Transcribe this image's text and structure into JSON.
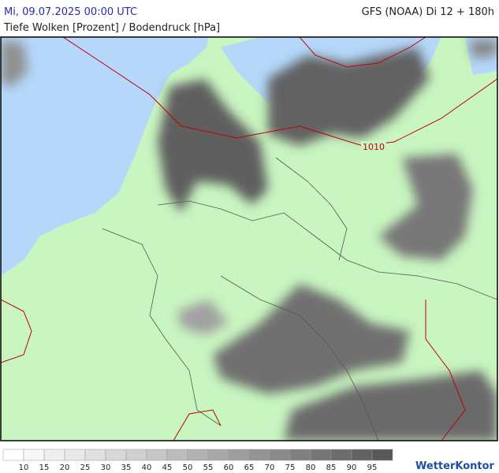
{
  "header": {
    "datetime": "Mi, 09.07.2025 00:00 UTC",
    "model": "GFS (NOAA) Di 12 + 180h",
    "parameter": "Tiefe Wolken [Prozent] / Bodendruck [hPa]"
  },
  "map": {
    "isobar_label": "1010"
  },
  "legend": {
    "ticks": [
      10,
      15,
      20,
      25,
      30,
      35,
      40,
      45,
      50,
      55,
      60,
      65,
      70,
      75,
      80,
      85,
      90,
      95
    ],
    "colors": [
      "#ffffff",
      "#f7f7f7",
      "#efefef",
      "#e8e8e8",
      "#e0e0e0",
      "#d8d8d8",
      "#d0d0d0",
      "#c6c6c6",
      "#bcbcbc",
      "#b2b2b2",
      "#a8a8a8",
      "#9e9e9e",
      "#949494",
      "#8a8a8a",
      "#808080",
      "#767676",
      "#6c6c6c",
      "#626262",
      "#585858"
    ]
  },
  "brand": "WetterKontor"
}
